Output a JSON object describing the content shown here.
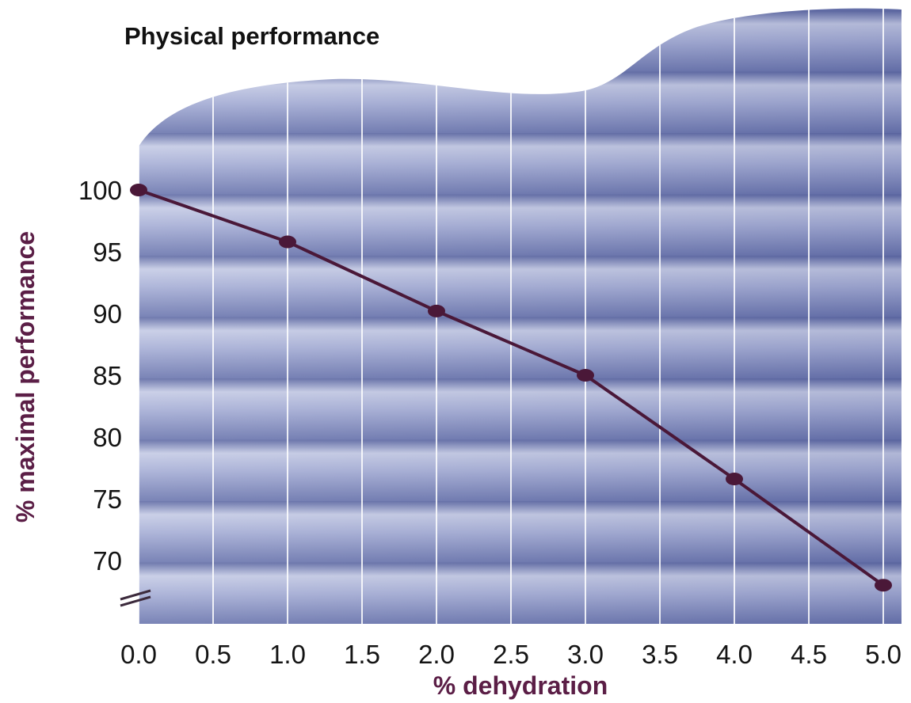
{
  "chart_data": {
    "type": "line",
    "title": "Physical performance",
    "xlabel": "% dehydration",
    "ylabel": "% maximal performance",
    "x_ticks": [
      "0.0",
      "0.5",
      "1.0",
      "1.5",
      "2.0",
      "2.5",
      "3.0",
      "3.5",
      "4.0",
      "4.5",
      "5.0"
    ],
    "y_ticks": [
      "100",
      "95",
      "90",
      "85",
      "80",
      "75",
      "70"
    ],
    "xlim": [
      0,
      5
    ],
    "ylim": [
      67,
      100
    ],
    "y_axis_break": true,
    "grid": true,
    "series": [
      {
        "x": [
          0,
          1,
          2,
          3,
          4,
          5
        ],
        "y": [
          100,
          95.8,
          90.2,
          85,
          76.6,
          68
        ]
      }
    ],
    "colors": {
      "line": "#4a1838",
      "marker": "#4a1838",
      "ylabel": "#5b1e46",
      "xlabel": "#5b1e46",
      "panel_light": "#c9cfe8",
      "panel_dark": "#6f79ae",
      "grid": "#ffffff"
    }
  }
}
